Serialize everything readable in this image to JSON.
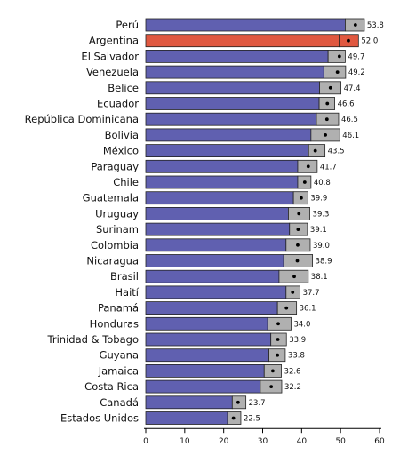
{
  "chart_data": {
    "type": "bar",
    "orientation": "horizontal",
    "categories": [
      "Perú",
      "Argentina",
      "El Salvador",
      "Venezuela",
      "Belice",
      "Ecuador",
      "República Dominicana",
      "Bolivia",
      "México",
      "Paraguay",
      "Chile",
      "Guatemala",
      "Uruguay",
      "Surinam",
      "Colombia",
      "Nicaragua",
      "Brasil",
      "Haití",
      "Panamá",
      "Honduras",
      "Trinidad & Tobago",
      "Guyana",
      "Jamaica",
      "Costa Rica",
      "Canadá",
      "Estados Unidos"
    ],
    "values": [
      53.8,
      52.0,
      49.7,
      49.2,
      47.4,
      46.6,
      46.5,
      46.1,
      43.5,
      41.7,
      40.8,
      39.9,
      39.3,
      39.1,
      39.0,
      38.9,
      38.1,
      37.7,
      36.1,
      34.0,
      33.9,
      33.8,
      32.6,
      32.2,
      23.7,
      22.5
    ],
    "value_labels": [
      "53.8",
      "52.0",
      "49.7",
      "49.2",
      "47.4",
      "46.6",
      "46.5",
      "46.1",
      "43.5",
      "41.7",
      "40.8",
      "39.9",
      "39.3",
      "39.1",
      "39.0",
      "38.9",
      "38.1",
      "37.7",
      "36.1",
      "34.0",
      "33.9",
      "33.8",
      "32.6",
      "32.2",
      "23.7",
      "22.5"
    ],
    "ci_low": [
      51.2,
      49.6,
      46.8,
      45.7,
      44.6,
      44.5,
      43.8,
      42.4,
      41.8,
      39.0,
      39.0,
      37.9,
      36.6,
      36.9,
      36.0,
      35.4,
      34.2,
      36.0,
      33.8,
      31.3,
      32.1,
      31.6,
      30.4,
      29.4,
      22.2,
      21.0
    ],
    "ci_high": [
      56.1,
      54.6,
      51.2,
      51.3,
      50.1,
      48.5,
      49.5,
      49.8,
      46.0,
      44.0,
      42.4,
      41.6,
      42.1,
      41.5,
      42.2,
      42.8,
      41.7,
      39.6,
      38.7,
      37.3,
      36.1,
      35.8,
      34.8,
      34.9,
      25.7,
      24.4
    ],
    "highlight_index": 1,
    "xlim": [
      0,
      60
    ],
    "xticks": [
      "0",
      "10",
      "20",
      "30",
      "40",
      "50",
      "60"
    ],
    "title": "",
    "xlabel": "",
    "ylabel": "",
    "grid": false,
    "colors": {
      "bar": "#6060b0",
      "highlight": "#e05840",
      "ci_box": "#b0b0b0",
      "outline": "#222222",
      "marker": "#000000"
    }
  }
}
